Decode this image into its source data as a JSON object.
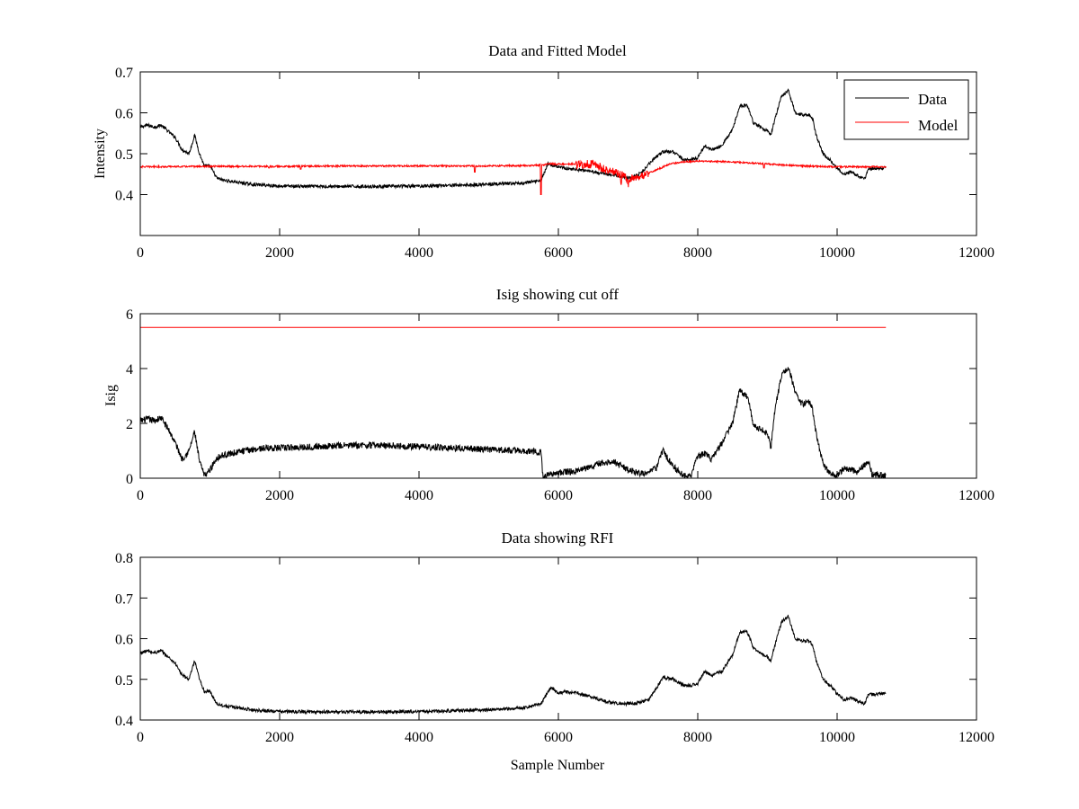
{
  "colors": {
    "data": "#000000",
    "model": "#ff0000",
    "background": "#ffffff"
  },
  "chart_data": [
    {
      "type": "line",
      "title": "Data and Fitted Model",
      "xlabel": "",
      "ylabel": "Intensity",
      "xlim": [
        0,
        12000
      ],
      "ylim": [
        0.3,
        0.7
      ],
      "xticks": [
        0,
        2000,
        4000,
        6000,
        8000,
        10000,
        12000
      ],
      "yticks": [
        0.4,
        0.5,
        0.6,
        0.7
      ],
      "ytick_labels": [
        "0.4",
        "0.5",
        "0.6",
        "0.7"
      ],
      "grid": false,
      "legend": {
        "position": "top-right",
        "entries": [
          "Data",
          "Model"
        ]
      },
      "series": [
        {
          "name": "Data",
          "color": "#000000",
          "noise": 0.004,
          "x": [
            0,
            100,
            200,
            300,
            400,
            500,
            600,
            700,
            780,
            850,
            920,
            1000,
            1100,
            1200,
            1400,
            1600,
            1800,
            2000,
            2500,
            3000,
            3500,
            4000,
            4500,
            5000,
            5500,
            5750,
            5850,
            5950,
            6100,
            6300,
            6500,
            6700,
            6900,
            7050,
            7200,
            7350,
            7500,
            7650,
            7800,
            7900,
            8000,
            8100,
            8200,
            8350,
            8500,
            8600,
            8700,
            8750,
            8800,
            8900,
            9000,
            9050,
            9100,
            9200,
            9300,
            9400,
            9500,
            9600,
            9650,
            9700,
            9800,
            9900,
            10000,
            10100,
            10200,
            10300,
            10400,
            10450,
            10500,
            10700
          ],
          "y": [
            0.565,
            0.57,
            0.565,
            0.57,
            0.555,
            0.54,
            0.51,
            0.5,
            0.545,
            0.5,
            0.47,
            0.47,
            0.44,
            0.435,
            0.43,
            0.425,
            0.423,
            0.421,
            0.42,
            0.42,
            0.42,
            0.421,
            0.423,
            0.425,
            0.428,
            0.435,
            0.475,
            0.47,
            0.465,
            0.46,
            0.455,
            0.45,
            0.445,
            0.44,
            0.455,
            0.485,
            0.505,
            0.505,
            0.485,
            0.485,
            0.49,
            0.52,
            0.51,
            0.52,
            0.56,
            0.615,
            0.62,
            0.6,
            0.575,
            0.565,
            0.555,
            0.545,
            0.58,
            0.64,
            0.655,
            0.6,
            0.595,
            0.595,
            0.585,
            0.545,
            0.5,
            0.485,
            0.465,
            0.45,
            0.455,
            0.445,
            0.44,
            0.465,
            0.463,
            0.465
          ]
        },
        {
          "name": "Model",
          "color": "#ff0000",
          "noise": 0.002,
          "x": [
            0,
            1000,
            2000,
            3000,
            4000,
            5000,
            5600,
            5750,
            5850,
            6000,
            6200,
            6500,
            6800,
            7000,
            7200,
            7400,
            7600,
            7800,
            8000,
            8500,
            9000,
            9500,
            10000,
            10700
          ],
          "y": [
            0.468,
            0.469,
            0.469,
            0.47,
            0.47,
            0.47,
            0.471,
            0.472,
            0.475,
            0.475,
            0.475,
            0.473,
            0.455,
            0.44,
            0.445,
            0.46,
            0.475,
            0.48,
            0.482,
            0.48,
            0.475,
            0.47,
            0.468,
            0.468
          ],
          "dips": [
            [
              1850,
              0.465
            ],
            [
              2300,
              0.462
            ],
            [
              4800,
              0.455
            ],
            [
              5750,
              0.4
            ],
            [
              7000,
              0.425
            ],
            [
              6900,
              0.43
            ],
            [
              8950,
              0.465
            ]
          ]
        }
      ]
    },
    {
      "type": "line",
      "title": "Isig showing cut off",
      "xlabel": "",
      "ylabel": "Isig",
      "xlim": [
        0,
        12000
      ],
      "ylim": [
        0,
        6
      ],
      "xticks": [
        0,
        2000,
        4000,
        6000,
        8000,
        10000,
        12000
      ],
      "yticks": [
        0,
        2,
        4,
        6
      ],
      "ytick_labels": [
        "0",
        "2",
        "4",
        "6"
      ],
      "grid": false,
      "series": [
        {
          "color": "#000000",
          "noise": 0.12,
          "x": [
            0,
            100,
            200,
            300,
            400,
            500,
            600,
            700,
            780,
            850,
            920,
            1000,
            1100,
            1200,
            1400,
            1600,
            1800,
            2000,
            2500,
            3000,
            3500,
            4000,
            4500,
            5000,
            5500,
            5750,
            5780,
            5850,
            6000,
            6200,
            6400,
            6600,
            6800,
            7000,
            7200,
            7400,
            7500,
            7600,
            7700,
            7800,
            7900,
            8000,
            8100,
            8200,
            8350,
            8500,
            8600,
            8700,
            8750,
            8800,
            8900,
            9000,
            9050,
            9100,
            9200,
            9300,
            9400,
            9500,
            9600,
            9650,
            9700,
            9800,
            9900,
            10000,
            10100,
            10200,
            10300,
            10400,
            10450,
            10500,
            10700
          ],
          "y": [
            2.1,
            2.15,
            2.1,
            2.2,
            1.8,
            1.3,
            0.7,
            1.0,
            1.7,
            0.6,
            0.1,
            0.3,
            0.75,
            0.85,
            0.95,
            1.05,
            1.1,
            1.1,
            1.15,
            1.2,
            1.2,
            1.15,
            1.1,
            1.05,
            1.0,
            0.95,
            0.0,
            0.15,
            0.2,
            0.25,
            0.35,
            0.55,
            0.6,
            0.3,
            0.15,
            0.35,
            1.0,
            0.6,
            0.3,
            0.1,
            0.1,
            0.8,
            0.9,
            0.7,
            1.3,
            2.0,
            3.2,
            3.0,
            2.6,
            1.9,
            1.8,
            1.6,
            1.1,
            2.4,
            3.7,
            4.1,
            3.1,
            2.7,
            2.8,
            2.5,
            1.6,
            0.5,
            0.2,
            0.1,
            0.35,
            0.3,
            0.2,
            0.5,
            0.6,
            0.15,
            0.1
          ]
        },
        {
          "color": "#ff0000",
          "noise": 0,
          "x": [
            0,
            10700
          ],
          "y": [
            5.5,
            5.5
          ]
        }
      ]
    },
    {
      "type": "line",
      "title": "Data showing RFI",
      "xlabel": "Sample Number",
      "ylabel": "",
      "xlim": [
        0,
        12000
      ],
      "ylim": [
        0.4,
        0.8
      ],
      "xticks": [
        0,
        2000,
        4000,
        6000,
        8000,
        10000,
        12000
      ],
      "yticks": [
        0.4,
        0.5,
        0.6,
        0.7,
        0.8
      ],
      "ytick_labels": [
        "0.4",
        "0.5",
        "0.6",
        "0.7",
        "0.8"
      ],
      "grid": false,
      "series": [
        {
          "color": "#000000",
          "noise": 0.004,
          "x": [
            0,
            100,
            200,
            300,
            400,
            500,
            600,
            700,
            780,
            850,
            920,
            1000,
            1100,
            1200,
            1400,
            1600,
            1800,
            2000,
            2500,
            3000,
            3500,
            4000,
            4500,
            5000,
            5500,
            5750,
            5850,
            5900,
            6000,
            6100,
            6300,
            6500,
            6700,
            6900,
            7100,
            7300,
            7450,
            7500,
            7650,
            7800,
            7900,
            8000,
            8100,
            8200,
            8350,
            8500,
            8600,
            8700,
            8750,
            8800,
            8900,
            9000,
            9050,
            9100,
            9200,
            9300,
            9400,
            9500,
            9600,
            9650,
            9700,
            9800,
            9900,
            10000,
            10100,
            10200,
            10300,
            10400,
            10450,
            10500,
            10700
          ],
          "y": [
            0.565,
            0.57,
            0.565,
            0.57,
            0.555,
            0.54,
            0.51,
            0.5,
            0.545,
            0.5,
            0.47,
            0.47,
            0.44,
            0.435,
            0.43,
            0.425,
            0.423,
            0.421,
            0.42,
            0.42,
            0.42,
            0.421,
            0.423,
            0.425,
            0.43,
            0.44,
            0.47,
            0.48,
            0.465,
            0.47,
            0.465,
            0.455,
            0.445,
            0.44,
            0.44,
            0.45,
            0.49,
            0.505,
            0.5,
            0.485,
            0.485,
            0.49,
            0.52,
            0.51,
            0.52,
            0.56,
            0.615,
            0.62,
            0.6,
            0.575,
            0.565,
            0.555,
            0.545,
            0.58,
            0.64,
            0.655,
            0.6,
            0.595,
            0.595,
            0.585,
            0.545,
            0.5,
            0.485,
            0.465,
            0.45,
            0.455,
            0.445,
            0.44,
            0.465,
            0.463,
            0.465
          ]
        }
      ]
    }
  ]
}
